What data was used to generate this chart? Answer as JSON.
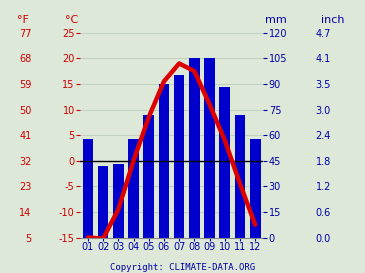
{
  "months": [
    "01",
    "02",
    "03",
    "04",
    "05",
    "06",
    "07",
    "08",
    "09",
    "10",
    "11",
    "12"
  ],
  "precipitation_mm": [
    58,
    42,
    43,
    58,
    72,
    90,
    95,
    105,
    105,
    88,
    72,
    58
  ],
  "temperature_c": [
    -15.0,
    -15.2,
    -9.5,
    0.0,
    8.5,
    15.5,
    19.0,
    17.5,
    11.0,
    4.0,
    -4.5,
    -12.5
  ],
  "bar_color": "#0000cc",
  "line_color": "#dd0000",
  "background_color": "#dde8d8",
  "plot_bg_color": "#dde8d8",
  "left_axis_color": "#cc0000",
  "right_axis_color": "#0000aa",
  "temp_min": -15,
  "temp_max": 25,
  "precip_min": 0,
  "precip_max": 120,
  "temp_yticks_c": [
    -15,
    -10,
    -5,
    0,
    5,
    10,
    15,
    20,
    25
  ],
  "temp_yticks_f": [
    5,
    14,
    23,
    32,
    41,
    50,
    59,
    68,
    77
  ],
  "precip_yticks_mm": [
    0,
    15,
    30,
    45,
    60,
    75,
    90,
    105,
    120
  ],
  "precip_yticks_inch": [
    "0.0",
    "0.6",
    "1.2",
    "1.8",
    "2.4",
    "3.0",
    "3.5",
    "4.1",
    "4.7"
  ],
  "label_f": "°F",
  "label_c": "°C",
  "label_mm": "mm",
  "label_inch": "inch",
  "zero_line_color": "#000000",
  "grid_color": "#bbccbb",
  "copyright_text": "Copyright: CLIMATE-DATA.ORG",
  "copyright_color": "#0000aa",
  "line_width": 3.2,
  "tick_fontsize": 7,
  "label_fontsize": 8
}
